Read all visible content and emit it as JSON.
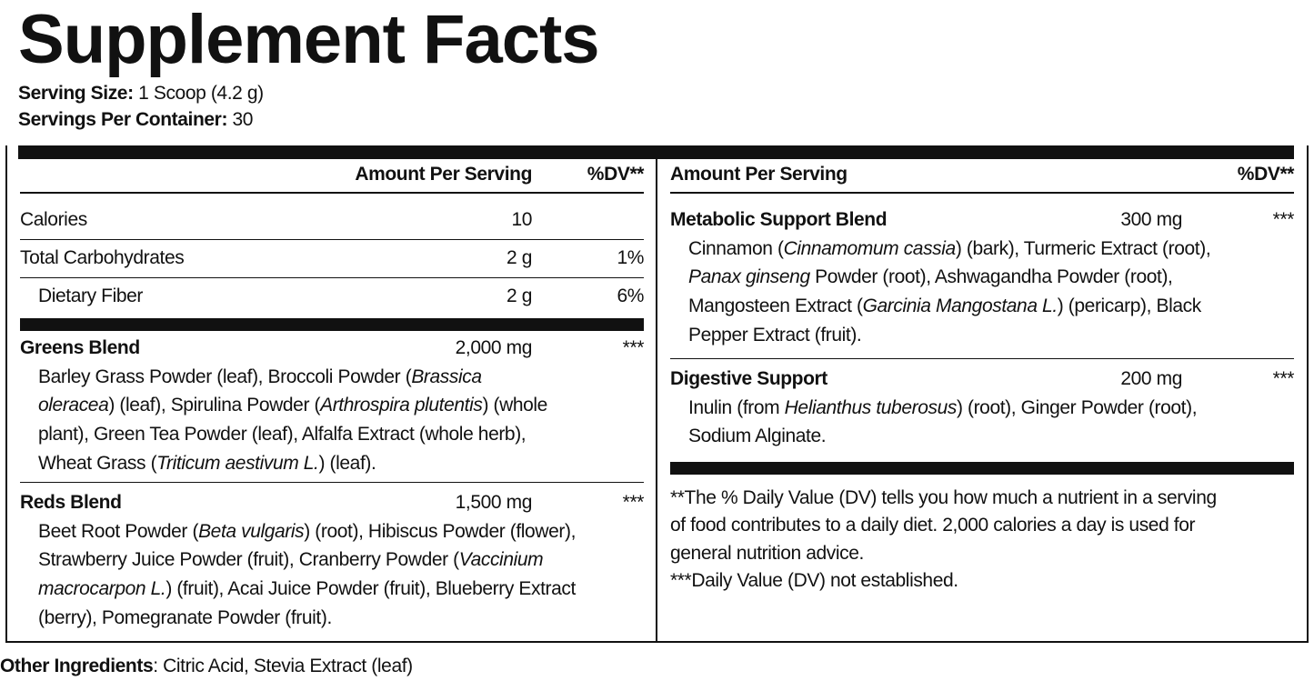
{
  "title": "Supplement Facts",
  "serving": [
    {
      "label": "Serving Size:",
      "value": "1 Scoop (4.2 g)"
    },
    {
      "label": "Servings Per Container:",
      "value": "30"
    }
  ],
  "left_header": {
    "amount": "Amount Per Serving",
    "dv": "%DV**"
  },
  "nutrients": [
    {
      "name": "Calories",
      "amount": "10"
    },
    {
      "name": "Total Carbohydrates",
      "amount": "2 g",
      "dv": "1%"
    },
    {
      "name": "Dietary Fiber",
      "amount": "2 g",
      "dv": "6%",
      "indent": true
    }
  ],
  "left_blends": [
    {
      "name": "Greens Blend",
      "amount": "2,000 mg",
      "dv": "***",
      "lines": [
        [
          {
            "text": "Barley Grass Powder (leaf), Broccoli Powder (",
            "italic": false
          },
          {
            "text": "Brassica",
            "italic": true
          }
        ],
        [
          {
            "text": "oleracea",
            "italic": true
          },
          {
            "text": ") (leaf), Spirulina Powder (",
            "italic": false
          },
          {
            "text": "Arthrospira plutentis",
            "italic": true
          },
          {
            "text": ") (whole",
            "italic": false
          }
        ],
        [
          {
            "text": "plant), Green Tea Powder (leaf), Alfalfa Extract (whole herb),",
            "italic": false
          }
        ],
        [
          {
            "text": "Wheat Grass (",
            "italic": false
          },
          {
            "text": "Triticum aestivum L.",
            "italic": true
          },
          {
            "text": ") (leaf).",
            "italic": false
          }
        ]
      ]
    },
    {
      "name": "Reds Blend",
      "amount": "1,500 mg",
      "dv": "***",
      "lines": [
        [
          {
            "text": "Beet Root Powder (",
            "italic": false
          },
          {
            "text": "Beta vulgaris",
            "italic": true
          },
          {
            "text": ") (root), Hibiscus Powder (flower),",
            "italic": false
          }
        ],
        [
          {
            "text": "Strawberry Juice Powder (fruit), Cranberry Powder (",
            "italic": false
          },
          {
            "text": "Vaccinium",
            "italic": true
          }
        ],
        [
          {
            "text": "macrocarpon L.",
            "italic": true
          },
          {
            "text": ") (fruit), Acai Juice Powder (fruit), Blueberry Extract",
            "italic": false
          }
        ],
        [
          {
            "text": "(berry), Pomegranate Powder (fruit).",
            "italic": false
          }
        ]
      ]
    }
  ],
  "right_header": {
    "amount": "Amount Per Serving",
    "dv": "%DV**"
  },
  "right_blends": [
    {
      "name": "Metabolic Support Blend",
      "amount": "300 mg",
      "dv": "***",
      "lines": [
        [
          {
            "text": "Cinnamon (",
            "italic": false
          },
          {
            "text": "Cinnamomum cassia",
            "italic": true
          },
          {
            "text": ") (bark), Turmeric Extract (root),",
            "italic": false
          }
        ],
        [
          {
            "text": "Panax ginseng",
            "italic": true
          },
          {
            "text": " Powder (root), Ashwagandha Powder (root),",
            "italic": false
          }
        ],
        [
          {
            "text": "Mangosteen Extract (",
            "italic": false
          },
          {
            "text": "Garcinia Mangostana L.",
            "italic": true
          },
          {
            "text": ") (pericarp), Black",
            "italic": false
          }
        ],
        [
          {
            "text": "Pepper Extract (fruit).",
            "italic": false
          }
        ]
      ]
    },
    {
      "name": "Digestive Support",
      "amount": "200 mg",
      "dv": "***",
      "lines": [
        [
          {
            "text": "Inulin (from ",
            "italic": false
          },
          {
            "text": "Helianthus tuberosus",
            "italic": true
          },
          {
            "text": ") (root), Ginger Powder (root),",
            "italic": false
          }
        ],
        [
          {
            "text": "Sodium Alginate.",
            "italic": false
          }
        ]
      ]
    }
  ],
  "footnotes": [
    "**The % Daily Value (DV) tells you how much a nutrient in a serving",
    "of food contributes to a daily diet. 2,000 calories a day is used for",
    "general nutrition advice.",
    "***Daily Value (DV) not established."
  ],
  "other_ingredients": {
    "label": "Other Ingredients",
    "text": ": Citric Acid, Stevia Extract (leaf)"
  }
}
